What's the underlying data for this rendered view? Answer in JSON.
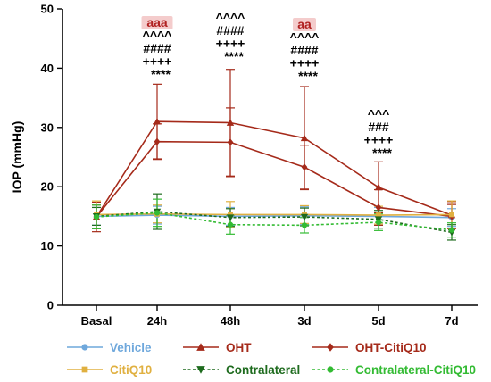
{
  "chart_data": {
    "type": "line",
    "ylabel": "IOP (mmHg)",
    "xlabel": "",
    "categories": [
      "Basal",
      "24h",
      "48h",
      "3d",
      "5d",
      "7d"
    ],
    "ylim": [
      0,
      50
    ],
    "yticks": [
      0,
      10,
      20,
      30,
      40,
      50
    ],
    "grid": false,
    "legend_position": "bottom",
    "series": [
      {
        "name": "Vehicle",
        "color": "#6fa8dc",
        "marker": "circle",
        "dash": "solid",
        "values": [
          15.0,
          15.2,
          15.0,
          15.1,
          15.0,
          14.8
        ],
        "errors": [
          1.5,
          1.5,
          1.5,
          1.5,
          1.5,
          1.5
        ]
      },
      {
        "name": "OHT",
        "color": "#a52a1a",
        "marker": "triangle-up",
        "dash": "solid",
        "values": [
          14.9,
          31.0,
          30.8,
          28.2,
          19.9,
          15.2
        ],
        "errors": [
          2.5,
          6.3,
          9.0,
          8.7,
          4.3,
          2.3
        ]
      },
      {
        "name": "OHT-CitiQ10",
        "color": "#a52a1a",
        "marker": "diamond",
        "dash": "solid",
        "values": [
          14.9,
          27.6,
          27.5,
          23.3,
          16.5,
          15.0
        ],
        "errors": [
          2.0,
          3.0,
          5.8,
          3.7,
          3.0,
          2.0
        ]
      },
      {
        "name": "CitiQ10",
        "color": "#e0b040",
        "marker": "square",
        "dash": "solid",
        "values": [
          15.3,
          15.4,
          15.3,
          15.3,
          15.2,
          15.3
        ],
        "errors": [
          2.3,
          1.5,
          2.2,
          1.5,
          1.5,
          2.3
        ]
      },
      {
        "name": "Contralateral",
        "color": "#1e6b1e",
        "marker": "triangle-down",
        "dash": "dashed",
        "values": [
          15.0,
          15.8,
          14.8,
          14.9,
          14.5,
          12.3
        ],
        "errors": [
          1.5,
          3.0,
          1.5,
          1.5,
          1.5,
          1.3
        ]
      },
      {
        "name": "Contralateral-CitiQ10",
        "color": "#33bb33",
        "marker": "circle",
        "dash": "dashed",
        "values": [
          14.9,
          15.6,
          13.6,
          13.5,
          14.0,
          12.7
        ],
        "errors": [
          2.0,
          2.3,
          1.6,
          1.3,
          1.4,
          1.2
        ]
      }
    ],
    "annotations": [
      {
        "category": "24h",
        "lines": [
          "aaa",
          "^^^^",
          "####",
          "++++",
          "****"
        ],
        "highlight": [
          0
        ]
      },
      {
        "category": "48h",
        "lines": [
          "^^^^",
          "####",
          "++++",
          "****"
        ],
        "highlight": []
      },
      {
        "category": "3d",
        "lines": [
          "aa",
          "^^^^",
          "####",
          "++++",
          "****"
        ],
        "highlight": [
          0
        ]
      },
      {
        "category": "5d",
        "lines": [
          "^^^",
          "###",
          "++++",
          "****"
        ],
        "highlight": []
      }
    ]
  }
}
